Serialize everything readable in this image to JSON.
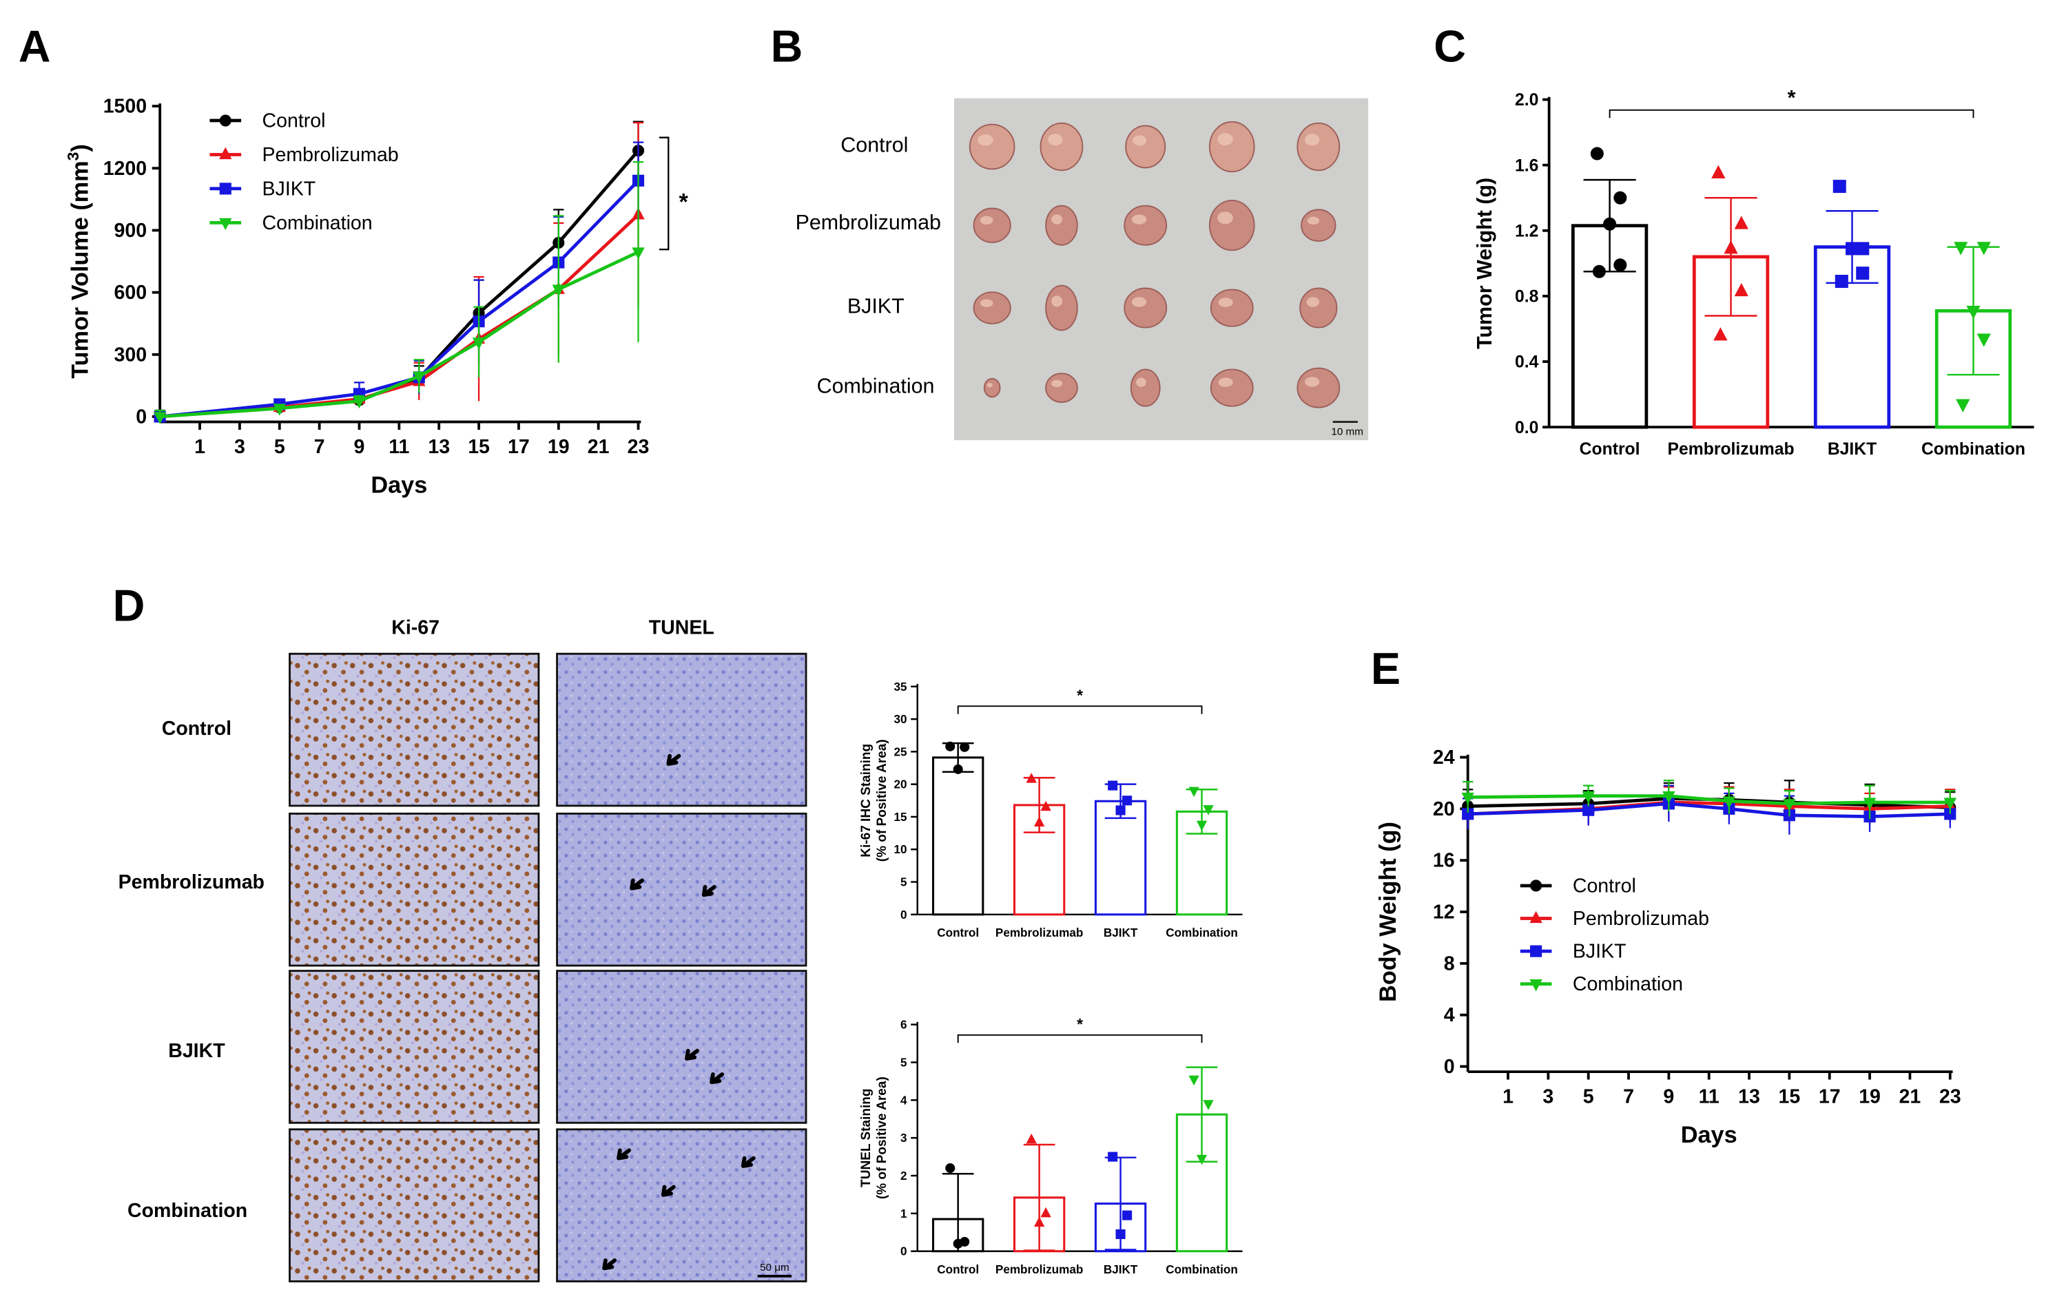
{
  "colors": {
    "Control": "#000000",
    "Pembrolizumab": "#e8151b",
    "BJIKT": "#1616e0",
    "Combination": "#17c417"
  },
  "panel_labels": {
    "a": "A",
    "b": "B",
    "c": "C",
    "d": "D",
    "e": "E"
  },
  "chart_data": [
    {
      "id": "A",
      "type": "line",
      "title": "",
      "xlabel": "Days",
      "ylabel": "Tumor Volume (mm",
      "ylabel_sup": "3",
      "ylabel_close": ")",
      "x_ticks": [
        1,
        3,
        5,
        7,
        9,
        11,
        13,
        15,
        17,
        19,
        21,
        23
      ],
      "y_ticks": [
        0,
        300,
        600,
        900,
        1200,
        1500
      ],
      "xlim": [
        -1,
        23
      ],
      "ylim": [
        0,
        1500
      ],
      "x": [
        -1,
        5,
        9,
        12,
        15,
        19,
        23
      ],
      "series": [
        {
          "name": "Control",
          "marker": "circle",
          "values": [
            0,
            45,
            80,
            185,
            500,
            840,
            1285
          ],
          "errors": [
            30,
            20,
            25,
            60,
            160,
            160,
            140
          ]
        },
        {
          "name": "Pembrolizumab",
          "marker": "triangle",
          "values": [
            0,
            45,
            85,
            170,
            375,
            615,
            975
          ],
          "errors": [
            30,
            20,
            30,
            90,
            300,
            320,
            445
          ]
        },
        {
          "name": "BJIKT",
          "marker": "square",
          "values": [
            0,
            60,
            110,
            190,
            460,
            745,
            1140
          ],
          "errors": [
            30,
            20,
            55,
            80,
            200,
            220,
            185
          ]
        },
        {
          "name": "Combination",
          "marker": "triangle-down",
          "values": [
            0,
            40,
            75,
            195,
            360,
            615,
            795
          ],
          "errors": [
            30,
            15,
            25,
            80,
            170,
            355,
            435
          ]
        }
      ],
      "significance": "*",
      "legend": [
        "Control",
        "Pembrolizumab",
        "BJIKT",
        "Combination"
      ]
    },
    {
      "id": "C",
      "type": "bar",
      "xlabel": "",
      "ylabel": "Tumor Weight (g)",
      "categories": [
        "Control",
        "Pembrolizumab",
        "BJIKT",
        "Combination"
      ],
      "values": [
        1.23,
        1.04,
        1.1,
        0.71
      ],
      "errors": [
        0.28,
        0.36,
        0.22,
        0.39
      ],
      "points": [
        [
          1.67,
          1.4,
          1.24,
          0.99,
          0.95
        ],
        [
          1.55,
          1.24,
          1.09,
          0.83,
          0.56
        ],
        [
          1.47,
          1.09,
          1.09,
          0.94,
          0.89
        ],
        [
          1.1,
          1.1,
          0.71,
          0.54,
          0.14
        ]
      ],
      "markers": [
        "circle",
        "triangle",
        "square",
        "triangle-down"
      ],
      "y_ticks": [
        0.0,
        0.4,
        0.8,
        1.2,
        1.6,
        2.0
      ],
      "y_tick_labels": [
        "0.0",
        "0.4",
        "0.8",
        "1.2",
        "1.6",
        "2.0"
      ],
      "ylim": [
        0,
        2.0
      ],
      "significance": "*"
    },
    {
      "id": "D-Ki67",
      "type": "bar",
      "ylabel": "Ki-67 IHC Staining",
      "ylabel2": "(% of Positive Area)",
      "categories": [
        "Control",
        "Pembrolizumab",
        "BJIKT",
        "Combination"
      ],
      "values": [
        24.1,
        16.8,
        17.4,
        15.8
      ],
      "errors": [
        2.2,
        4.2,
        2.6,
        3.4
      ],
      "points": [
        [
          25.8,
          25.7,
          22.3
        ],
        [
          20.8,
          16.5,
          14.1
        ],
        [
          19.8,
          17.5,
          16.0
        ],
        [
          19.0,
          16.2,
          13.8
        ]
      ],
      "markers": [
        "circle",
        "triangle",
        "square",
        "triangle-down"
      ],
      "y_ticks": [
        0,
        5,
        10,
        15,
        20,
        25,
        30,
        35
      ],
      "ylim": [
        0,
        35
      ],
      "significance": "*"
    },
    {
      "id": "D-TUNEL",
      "type": "bar",
      "ylabel": "TUNEL Staining",
      "ylabel2": "(% of Positive Area)",
      "categories": [
        "Control",
        "Pembrolizumab",
        "BJIKT",
        "Combination"
      ],
      "values": [
        0.85,
        1.42,
        1.26,
        3.62
      ],
      "errors": [
        1.2,
        1.4,
        1.22,
        1.25
      ],
      "points": [
        [
          2.2,
          0.25,
          0.2
        ],
        [
          2.95,
          1.0,
          0.75
        ],
        [
          2.5,
          0.95,
          0.45
        ],
        [
          4.55,
          3.9,
          2.45
        ]
      ],
      "markers": [
        "circle",
        "triangle",
        "square",
        "triangle-down"
      ],
      "y_ticks": [
        0,
        1,
        2,
        3,
        4,
        5,
        6
      ],
      "ylim": [
        0,
        6
      ],
      "significance": "*"
    },
    {
      "id": "E",
      "type": "line",
      "xlabel": "Days",
      "ylabel": "Body Weight (g)",
      "x_ticks": [
        1,
        3,
        5,
        7,
        9,
        11,
        13,
        15,
        17,
        19,
        21,
        23
      ],
      "y_ticks": [
        0,
        4,
        8,
        12,
        16,
        20,
        24
      ],
      "xlim": [
        -1,
        23
      ],
      "ylim": [
        0,
        24
      ],
      "x": [
        -1,
        5,
        9,
        12,
        15,
        19,
        23
      ],
      "series": [
        {
          "name": "Control",
          "marker": "circle",
          "values": [
            20.2,
            20.4,
            20.8,
            20.7,
            20.5,
            20.3,
            20.1
          ],
          "errors": [
            1.3,
            1.0,
            1.2,
            1.3,
            1.7,
            1.6,
            1.2
          ]
        },
        {
          "name": "Pembrolizumab",
          "marker": "triangle",
          "values": [
            19.6,
            20.0,
            20.5,
            20.4,
            20.2,
            20.0,
            20.2
          ],
          "errors": [
            1.2,
            1.2,
            1.2,
            1.3,
            1.3,
            1.2,
            1.3
          ]
        },
        {
          "name": "BJIKT",
          "marker": "square",
          "values": [
            19.6,
            19.9,
            20.4,
            20.0,
            19.5,
            19.4,
            19.6
          ],
          "errors": [
            1.2,
            1.2,
            1.4,
            1.2,
            1.5,
            1.2,
            1.1
          ]
        },
        {
          "name": "Combination",
          "marker": "triangle-down",
          "values": [
            20.9,
            21.0,
            21.0,
            20.6,
            20.4,
            20.5,
            20.5
          ],
          "errors": [
            1.2,
            0.8,
            1.2,
            1.0,
            1.0,
            1.3,
            0.9
          ]
        }
      ],
      "legend": [
        "Control",
        "Pembrolizumab",
        "BJIKT",
        "Combination"
      ]
    }
  ],
  "panel_b": {
    "rows": [
      "Control",
      "Pembrolizumab",
      "BJIKT",
      "Combination"
    ],
    "scale_bar": "10 mm"
  },
  "panel_d": {
    "columns": [
      "Ki-67",
      "TUNEL"
    ],
    "rows": [
      "Control",
      "Pembrolizumab",
      "BJIKT",
      "Combination"
    ],
    "scale_bar": "50 μm"
  }
}
